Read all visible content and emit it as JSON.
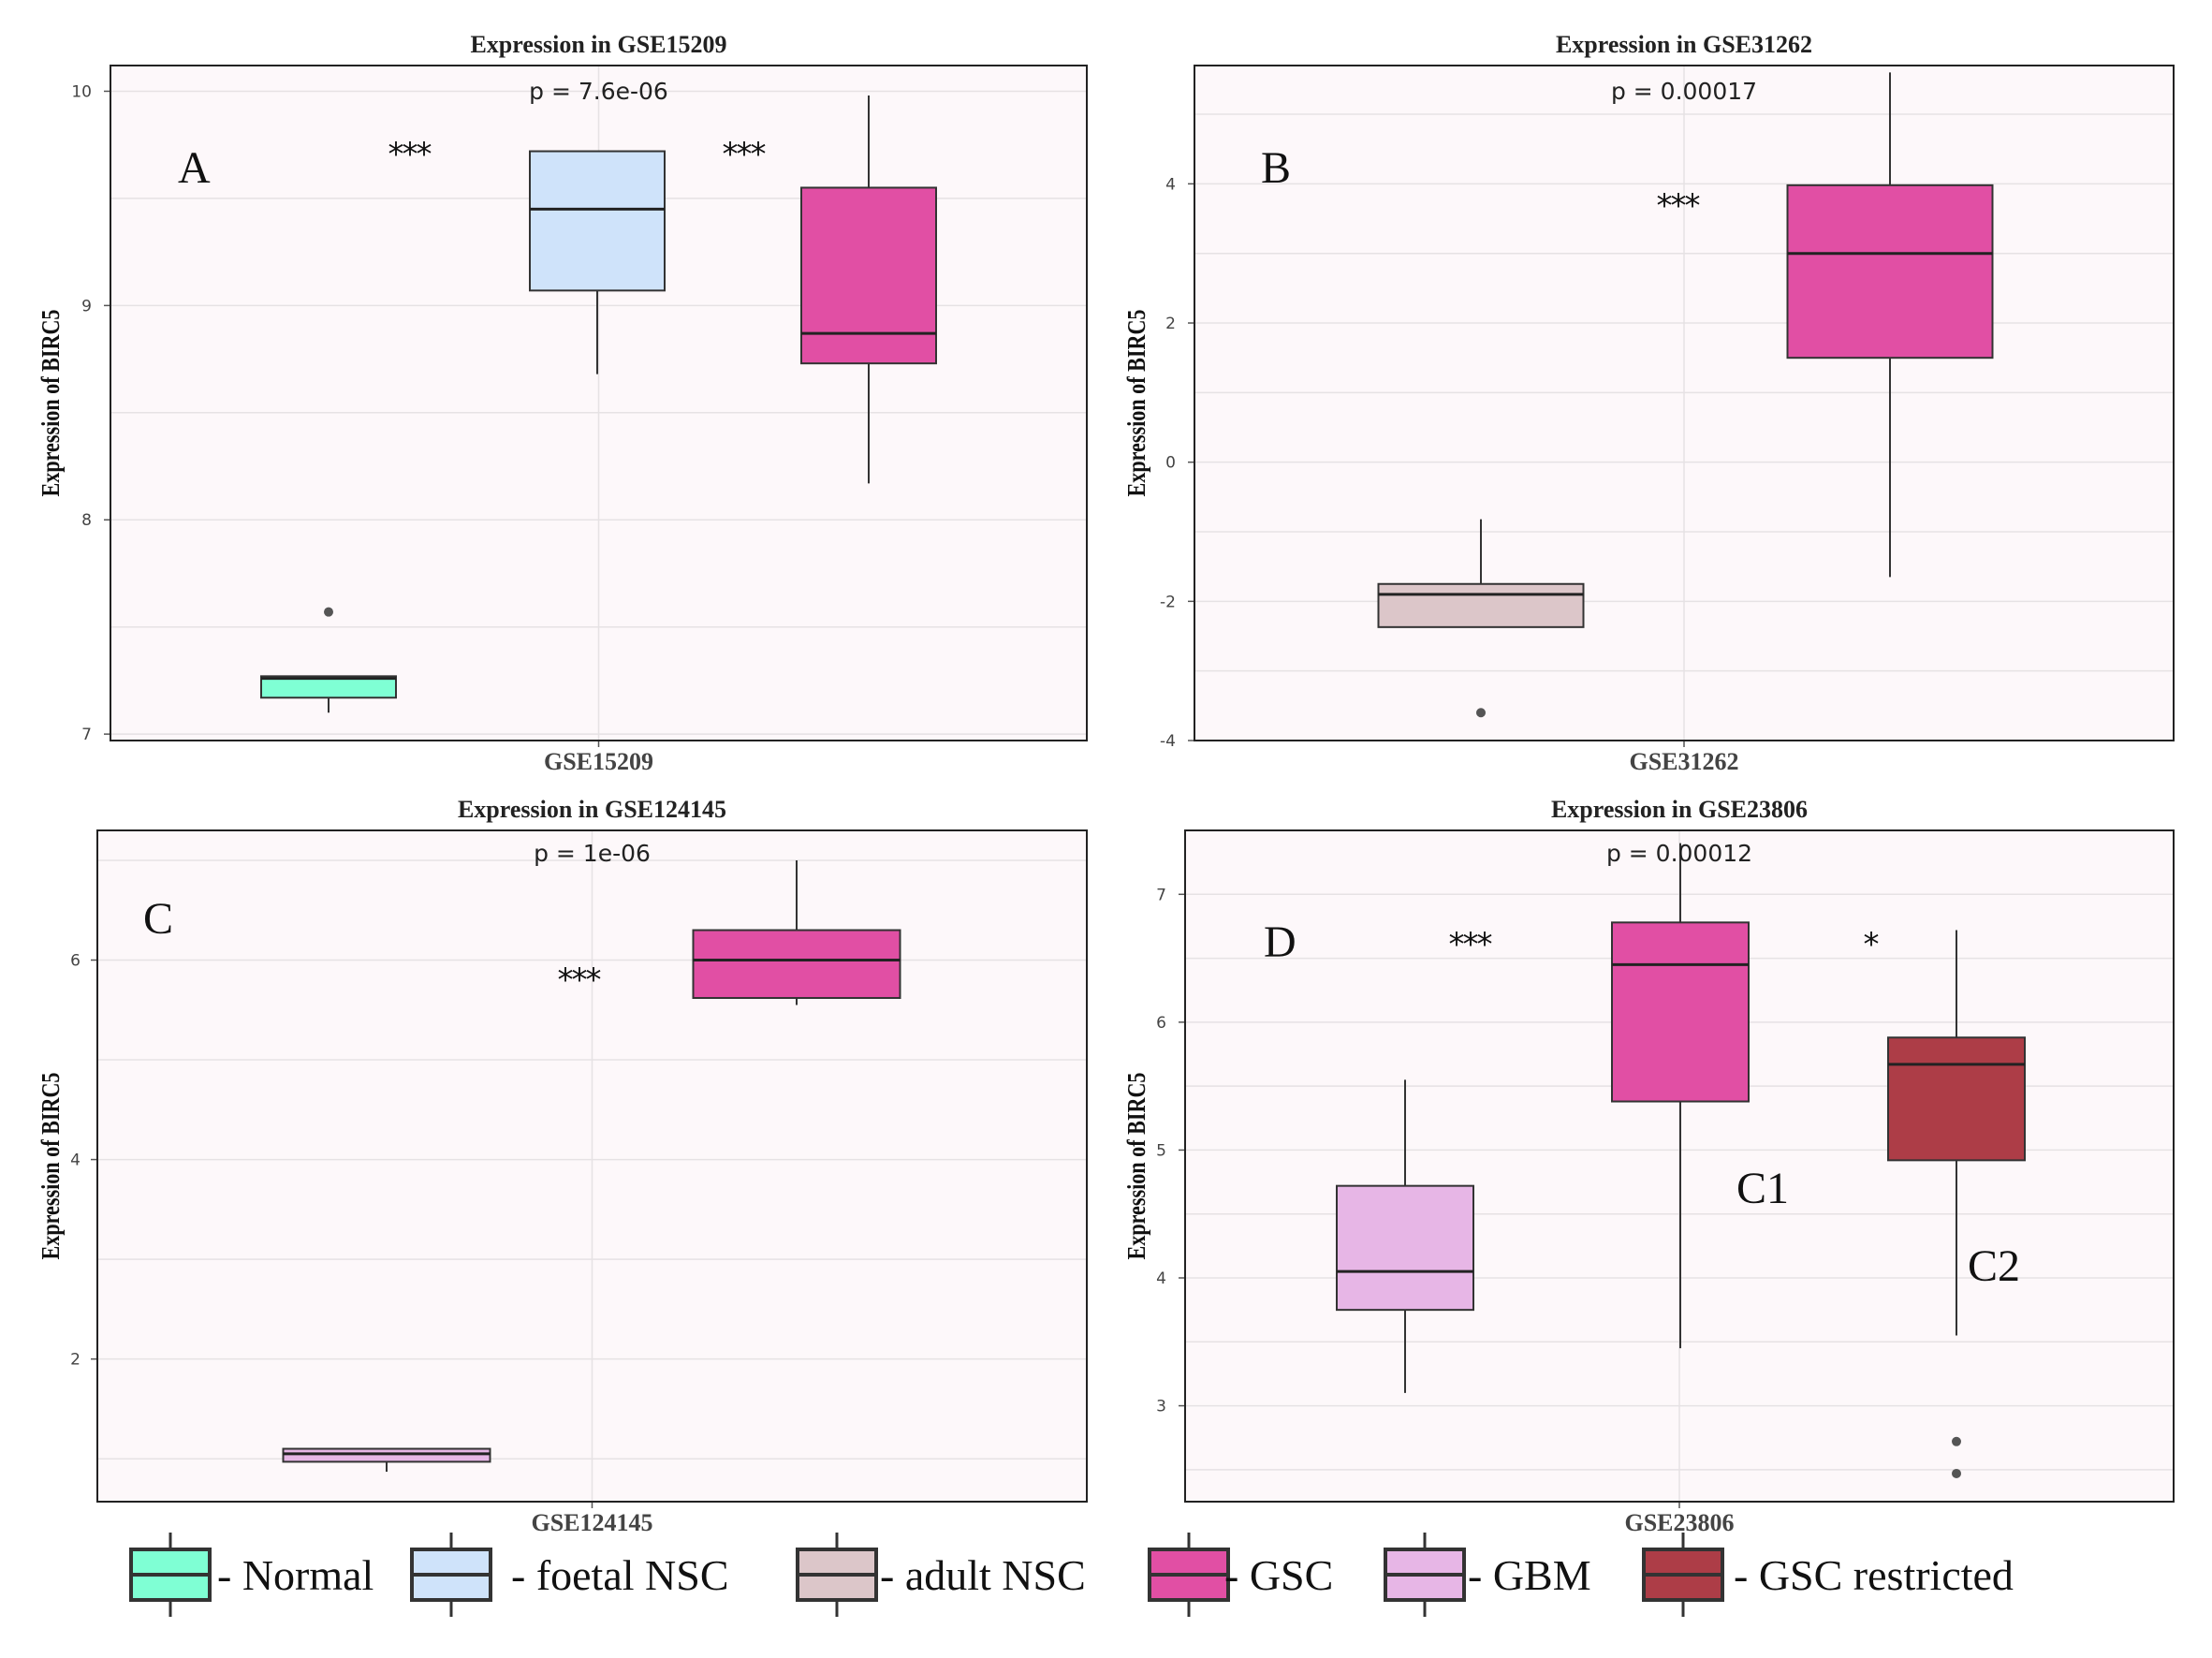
{
  "colors": {
    "Normal": "#7fffd4",
    "foetal NSC": "#cfe3fa",
    "adult NSC": "#dcc6c9",
    "GSC": "#e14fa4",
    "GBM": "#e7b6e6",
    "GSC restricted": "#ad3d47",
    "panel_bg": "#fdf8fa",
    "grid": "#e6e2e4"
  },
  "chart_data": [
    {
      "type": "box",
      "panel": "A",
      "title": "Expression in GSE15209",
      "p_label": "p = 7.6e-06",
      "ylabel": "Expression of BIRC5",
      "xlabel": "GSE15209",
      "ylim": [
        6.97,
        10.12
      ],
      "yticks": [
        7,
        8,
        9,
        10
      ],
      "tick_labels": [
        "7",
        "8",
        "9",
        "10"
      ],
      "boxes": [
        {
          "group": "Normal",
          "whisker_low": 7.1,
          "q1": 7.17,
          "median": 7.26,
          "q3": 7.27,
          "whisker_high": 7.27,
          "outliers": [
            7.57
          ]
        },
        {
          "group": "foetal NSC",
          "whisker_low": 8.68,
          "q1": 9.07,
          "median": 9.45,
          "q3": 9.72,
          "whisker_high": 9.72,
          "outliers": []
        },
        {
          "group": "GSC",
          "whisker_low": 8.17,
          "q1": 8.73,
          "median": 8.87,
          "q3": 9.55,
          "whisker_high": 9.98,
          "outliers": []
        }
      ],
      "annotations": [
        {
          "text": "***",
          "between": [
            0,
            1
          ]
        },
        {
          "text": "***",
          "between": [
            1,
            2
          ]
        }
      ]
    },
    {
      "type": "box",
      "panel": "B",
      "title": "Expression in GSE31262",
      "p_label": "p = 0.00017",
      "ylabel": "Expression of BIRC5",
      "xlabel": "GSE31262",
      "ylim": [
        -4.0,
        5.7
      ],
      "yticks": [
        -4,
        -2,
        0,
        2,
        4
      ],
      "tick_labels": [
        "-4",
        "-2",
        "0",
        "2",
        "4"
      ],
      "boxes": [
        {
          "group": "adult NSC",
          "whisker_low": -2.37,
          "q1": -2.37,
          "median": -1.9,
          "q3": -1.75,
          "whisker_high": -0.82,
          "outliers": [
            -3.6
          ]
        },
        {
          "group": "GSC",
          "whisker_low": -1.65,
          "q1": 1.5,
          "median": 3.0,
          "q3": 3.98,
          "whisker_high": 5.6,
          "outliers": []
        }
      ],
      "annotations": [
        {
          "text": "***",
          "between": [
            0,
            1
          ]
        }
      ]
    },
    {
      "type": "box",
      "panel": "C",
      "title": "Expression in GSE124145",
      "p_label": "p = 1e-06",
      "ylabel": "Expression of BIRC5",
      "xlabel": "GSE124145",
      "ylim": [
        0.57,
        7.3
      ],
      "yticks": [
        2,
        4,
        6
      ],
      "tick_labels": [
        "2",
        "4",
        "6"
      ],
      "boxes": [
        {
          "group": "GBM",
          "whisker_low": 0.87,
          "q1": 0.97,
          "median": 1.05,
          "q3": 1.1,
          "whisker_high": 1.1,
          "outliers": []
        },
        {
          "group": "GSC",
          "whisker_low": 5.55,
          "q1": 5.62,
          "median": 6.0,
          "q3": 6.3,
          "whisker_high": 7.0,
          "outliers": []
        }
      ],
      "annotations": [
        {
          "text": "***",
          "between": [
            0,
            1
          ]
        }
      ]
    },
    {
      "type": "box",
      "panel": "D",
      "title": "Expression in GSE23806",
      "p_label": "p = 0.00012",
      "ylabel": "Expression of BIRC5",
      "xlabel": "GSE23806",
      "ylim": [
        2.25,
        7.5
      ],
      "yticks": [
        3,
        4,
        5,
        6,
        7
      ],
      "tick_labels": [
        "3",
        "4",
        "5",
        "6",
        "7"
      ],
      "boxes": [
        {
          "group": "GBM",
          "whisker_low": 3.1,
          "q1": 3.75,
          "median": 4.05,
          "q3": 4.72,
          "whisker_high": 5.55,
          "outliers": []
        },
        {
          "group": "GSC",
          "whisker_low": 3.45,
          "q1": 5.38,
          "median": 6.45,
          "q3": 6.78,
          "whisker_high": 7.4,
          "outliers": []
        },
        {
          "group": "GSC restricted",
          "whisker_low": 3.55,
          "q1": 4.92,
          "median": 5.67,
          "q3": 5.88,
          "whisker_high": 6.72,
          "outliers": [
            2.72,
            2.47
          ]
        }
      ],
      "annotations": [
        {
          "text": "***",
          "between": [
            0,
            1
          ]
        },
        {
          "text": "*",
          "between": [
            1,
            2
          ]
        }
      ],
      "box_labels": [
        {
          "text": "C1",
          "box": 1
        },
        {
          "text": "C2",
          "box": 2
        }
      ]
    }
  ],
  "legend": [
    {
      "label": "- Normal",
      "group": "Normal"
    },
    {
      "label": "- foetal NSC",
      "group": "foetal NSC"
    },
    {
      "label": "- adult NSC",
      "group": "adult NSC"
    },
    {
      "label": "- GSC",
      "group": "GSC"
    },
    {
      "label": "- GBM",
      "group": "GBM"
    },
    {
      "label": "- GSC restricted",
      "group": "GSC restricted"
    }
  ]
}
